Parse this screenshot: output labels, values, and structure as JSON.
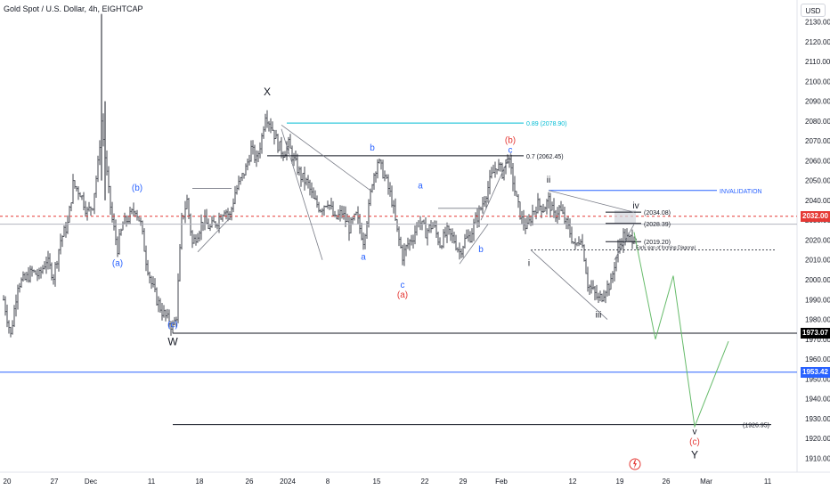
{
  "header": {
    "title": "Gold Spot / U.S. Dollar, 4h, EIGHTCAP",
    "currency": "USD"
  },
  "colors": {
    "candle": "#131722",
    "fib": "#00bcd4",
    "invalidation": "#2962ff",
    "blue_label": "#2962ff",
    "red_label": "#e53935",
    "projection": "#66bb6a",
    "current_price": "#e53935",
    "tag_black": "#000000",
    "tag_blue": "#2962ff"
  },
  "chart_data": {
    "type": "candlestick",
    "ylim": [
      1903,
      2141
    ],
    "y_ticks": [
      2130,
      2120,
      2110,
      2100,
      2090,
      2080,
      2070,
      2060,
      2050,
      2040,
      2030,
      2020,
      2010,
      2000,
      1990,
      1980,
      1970,
      1960,
      1950,
      1940,
      1930,
      1920,
      1910
    ],
    "x_ticks": [
      {
        "label": "20",
        "x": 8
      },
      {
        "label": "27",
        "x": 61
      },
      {
        "label": "Dec",
        "x": 102
      },
      {
        "label": "11",
        "x": 170
      },
      {
        "label": "18",
        "x": 224
      },
      {
        "label": "26",
        "x": 280
      },
      {
        "label": "2024",
        "x": 323
      },
      {
        "label": "8",
        "x": 368
      },
      {
        "label": "15",
        "x": 423
      },
      {
        "label": "22",
        "x": 477
      },
      {
        "label": "29",
        "x": 520
      },
      {
        "label": "Feb",
        "x": 563
      },
      {
        "label": "12",
        "x": 643
      },
      {
        "label": "19",
        "x": 696
      },
      {
        "label": "26",
        "x": 748
      },
      {
        "label": "Mar",
        "x": 793
      },
      {
        "label": "11",
        "x": 862
      }
    ],
    "price_path": [
      [
        4,
        1990
      ],
      [
        12,
        1972
      ],
      [
        20,
        1998
      ],
      [
        28,
        2000
      ],
      [
        36,
        2004
      ],
      [
        44,
        2002
      ],
      [
        52,
        2010
      ],
      [
        60,
        2002
      ],
      [
        68,
        2020
      ],
      [
        76,
        2028
      ],
      [
        82,
        2048
      ],
      [
        90,
        2044
      ],
      [
        98,
        2034
      ],
      [
        104,
        2038
      ],
      [
        110,
        2058
      ],
      [
        114,
        2080
      ],
      [
        118,
        2062
      ],
      [
        122,
        2044
      ],
      [
        126,
        2030
      ],
      [
        132,
        2016
      ],
      [
        138,
        2028
      ],
      [
        146,
        2032
      ],
      [
        152,
        2036
      ],
      [
        158,
        2028
      ],
      [
        164,
        2010
      ],
      [
        170,
        1998
      ],
      [
        176,
        1990
      ],
      [
        182,
        1984
      ],
      [
        188,
        1980
      ],
      [
        194,
        1976
      ],
      [
        198,
        1982
      ],
      [
        204,
        2030
      ],
      [
        210,
        2040
      ],
      [
        216,
        2018
      ],
      [
        222,
        2024
      ],
      [
        228,
        2030
      ],
      [
        236,
        2026
      ],
      [
        244,
        2030
      ],
      [
        252,
        2036
      ],
      [
        258,
        2032
      ],
      [
        264,
        2044
      ],
      [
        270,
        2050
      ],
      [
        276,
        2056
      ],
      [
        282,
        2066
      ],
      [
        288,
        2060
      ],
      [
        294,
        2072
      ],
      [
        298,
        2084
      ],
      [
        302,
        2080
      ],
      [
        306,
        2076
      ],
      [
        312,
        2068
      ],
      [
        318,
        2064
      ],
      [
        324,
        2068
      ],
      [
        330,
        2060
      ],
      [
        338,
        2052
      ],
      [
        346,
        2048
      ],
      [
        352,
        2040
      ],
      [
        360,
        2036
      ],
      [
        368,
        2040
      ],
      [
        376,
        2030
      ],
      [
        384,
        2034
      ],
      [
        392,
        2026
      ],
      [
        400,
        2032
      ],
      [
        408,
        2020
      ],
      [
        414,
        2036
      ],
      [
        418,
        2050
      ],
      [
        424,
        2060
      ],
      [
        432,
        2052
      ],
      [
        440,
        2040
      ],
      [
        446,
        2024
      ],
      [
        452,
        2012
      ],
      [
        458,
        2018
      ],
      [
        464,
        2022
      ],
      [
        470,
        2030
      ],
      [
        478,
        2024
      ],
      [
        486,
        2028
      ],
      [
        494,
        2018
      ],
      [
        502,
        2024
      ],
      [
        510,
        2020
      ],
      [
        516,
        2014
      ],
      [
        522,
        2020
      ],
      [
        528,
        2022
      ],
      [
        534,
        2030
      ],
      [
        540,
        2036
      ],
      [
        546,
        2044
      ],
      [
        552,
        2052
      ],
      [
        558,
        2058
      ],
      [
        564,
        2054
      ],
      [
        570,
        2062
      ],
      [
        576,
        2050
      ],
      [
        580,
        2040
      ],
      [
        586,
        2030
      ],
      [
        592,
        2026
      ],
      [
        598,
        2034
      ],
      [
        604,
        2038
      ],
      [
        610,
        2036
      ],
      [
        616,
        2040
      ],
      [
        622,
        2032
      ],
      [
        628,
        2036
      ],
      [
        634,
        2030
      ],
      [
        640,
        2024
      ],
      [
        646,
        2016
      ],
      [
        652,
        2022
      ],
      [
        656,
        2012
      ],
      [
        660,
        1998
      ],
      [
        666,
        1994
      ],
      [
        672,
        1990
      ],
      [
        676,
        1992
      ],
      [
        680,
        1996
      ],
      [
        686,
        1998
      ],
      [
        690,
        2008
      ],
      [
        696,
        2018
      ],
      [
        700,
        2022
      ],
      [
        706,
        2020
      ],
      [
        712,
        2022
      ]
    ],
    "candle_range_x": [
      4,
      714
    ],
    "spikes": [
      {
        "x": 114,
        "high": 2134,
        "low": 2050
      },
      {
        "x": 118,
        "high": 2090,
        "low": 2040
      }
    ],
    "horizontal_levels": [
      {
        "label": "0.89 (2078.90)",
        "price": 2079,
        "x1": 322,
        "x2": 588,
        "color": "fib"
      },
      {
        "label": "0.7 (2062.45)",
        "price": 2062.45,
        "x1": 300,
        "x2": 588,
        "color": "candle"
      },
      {
        "label": "INVALIDATION",
        "price": 2045,
        "x1": 616,
        "x2": 805,
        "color": "invalidation"
      },
      {
        "label": "(2034.08)",
        "price": 2034.08,
        "x1": 680,
        "x2": 720,
        "color": "candle"
      },
      {
        "label": "(2028.39)",
        "price": 2028.39,
        "x1": 680,
        "x2": 720,
        "color": "candle"
      },
      {
        "label": "(2019.20)",
        "price": 2019.2,
        "x1": 680,
        "x2": 720,
        "color": "candle"
      },
      {
        "label": "(1926.95)",
        "price": 1926.95,
        "x1": 194,
        "x2": 866,
        "color": "candle"
      }
    ],
    "full_lines": [
      {
        "price": 1973.07,
        "x1": 194,
        "color": "candle"
      },
      {
        "price": 1953.42,
        "x1": 0,
        "color": "invalidation"
      }
    ],
    "current_price": 2032.0,
    "reference_price": 2028.0,
    "dashed_note": {
      "label": "Early sign of forming Diagonal",
      "price": 2015,
      "x1": 596,
      "x2": 870
    },
    "price_tags": [
      {
        "label": "2032.00",
        "price": 2032.0,
        "bg": "current_price"
      },
      {
        "label": "1973.07",
        "price": 1973.07,
        "bg": "tag_black"
      },
      {
        "label": "1953.42",
        "price": 1953.42,
        "bg": "tag_blue"
      }
    ],
    "wave_labels": [
      {
        "t": "X",
        "x": 300,
        "p": 2093,
        "c": "candle",
        "s": 12
      },
      {
        "t": "W",
        "x": 194,
        "p": 1967,
        "c": "candle",
        "s": 12
      },
      {
        "t": "(b)",
        "x": 154,
        "p": 2045,
        "c": "blue_label",
        "s": 10
      },
      {
        "t": "(a)",
        "x": 132,
        "p": 2007,
        "c": "blue_label",
        "s": 10
      },
      {
        "t": "(c)",
        "x": 194,
        "p": 1976,
        "c": "blue_label",
        "s": 10
      },
      {
        "t": "b",
        "x": 418,
        "p": 2065,
        "c": "blue_label",
        "s": 10
      },
      {
        "t": "a",
        "x": 408,
        "p": 2010,
        "c": "blue_label",
        "s": 10
      },
      {
        "t": "a",
        "x": 472,
        "p": 2046,
        "c": "blue_label",
        "s": 10
      },
      {
        "t": "c",
        "x": 452,
        "p": 1996,
        "c": "blue_label",
        "s": 10
      },
      {
        "t": "(a)",
        "x": 452,
        "p": 1991,
        "c": "red_label",
        "s": 10
      },
      {
        "t": "b",
        "x": 540,
        "p": 2014,
        "c": "blue_label",
        "s": 10
      },
      {
        "t": "c",
        "x": 573,
        "p": 2064,
        "c": "blue_label",
        "s": 10
      },
      {
        "t": "(b)",
        "x": 573,
        "p": 2069,
        "c": "red_label",
        "s": 10
      },
      {
        "t": "ii",
        "x": 616,
        "p": 2049,
        "c": "candle",
        "s": 10
      },
      {
        "t": "i",
        "x": 594,
        "p": 2007,
        "c": "candle",
        "s": 10
      },
      {
        "t": "iii",
        "x": 672,
        "p": 1981,
        "c": "candle",
        "s": 10
      },
      {
        "t": "iv",
        "x": 714,
        "p": 2036,
        "c": "candle",
        "s": 10
      },
      {
        "t": "v",
        "x": 780,
        "p": 1922,
        "c": "candle",
        "s": 10
      },
      {
        "t": "(c)",
        "x": 780,
        "p": 1917,
        "c": "red_label",
        "s": 10
      },
      {
        "t": "Y",
        "x": 780,
        "p": 1910,
        "c": "candle",
        "s": 12
      }
    ],
    "trend_lines": [
      [
        [
          316,
          2076
        ],
        [
          362,
          2010
        ]
      ],
      [
        [
          316,
          2078
        ],
        [
          416,
          2045
        ]
      ],
      [
        [
          222,
          2014
        ],
        [
          260,
          2032
        ]
      ],
      [
        [
          216,
          2046
        ],
        [
          260,
          2046
        ]
      ],
      [
        [
          540,
          2030
        ],
        [
          574,
          2064
        ]
      ],
      [
        [
          516,
          2008
        ],
        [
          548,
          2028
        ]
      ],
      [
        [
          492,
          2036
        ],
        [
          540,
          2036
        ]
      ],
      [
        [
          596,
          2015
        ],
        [
          682,
          1980
        ]
      ],
      [
        [
          616,
          2045
        ],
        [
          712,
          2034
        ]
      ],
      [
        [
          690,
          2010
        ],
        [
          712,
          2028
        ]
      ]
    ],
    "projection_path": [
      [
        712,
        2024
      ],
      [
        736,
        1970
      ],
      [
        756,
        2002
      ],
      [
        780,
        1926
      ],
      [
        818,
        1969
      ]
    ],
    "shaded_box": {
      "x1": 690,
      "x2": 714,
      "p1": 2035,
      "p2": 2028
    }
  }
}
